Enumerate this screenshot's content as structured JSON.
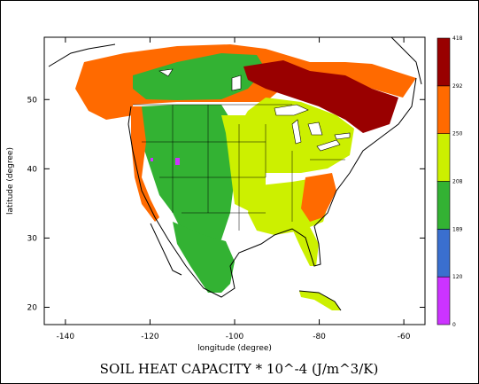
{
  "title": "SOIL HEAT CAPACITY * 10^-4 (J/m^3/K)",
  "x_axis": {
    "label": "longitude (degree)",
    "ticks": [
      "-140",
      "-120",
      "-100",
      "-80",
      "-60"
    ],
    "tick_values": [
      -140,
      -120,
      -100,
      -80,
      -60
    ],
    "range": [
      -145,
      -55
    ]
  },
  "y_axis": {
    "label": "latitude (degree)",
    "ticks": [
      "20",
      "30",
      "40",
      "50"
    ],
    "tick_values": [
      20,
      30,
      40,
      50
    ],
    "range": [
      17.5,
      59
    ]
  },
  "colorbar": {
    "labels": [
      "0",
      "120",
      "189",
      "208",
      "250",
      "292",
      "418"
    ],
    "colors": [
      "#cc33ff",
      "#3a6fcf",
      "#33b233",
      "#ccf000",
      "#ff6a00",
      "#990000"
    ]
  },
  "colors": {
    "ocean": "#ffffff",
    "outline": "#000000"
  }
}
